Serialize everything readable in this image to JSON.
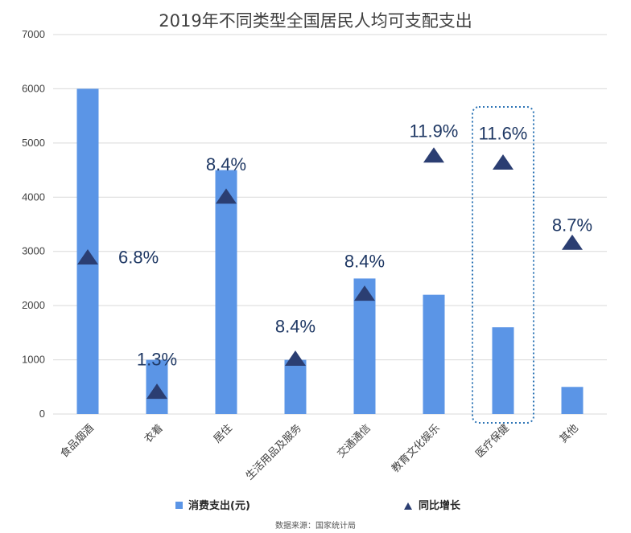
{
  "colors": {
    "bar": "#5b95e6",
    "marker": "#2b3e72",
    "label": "#1f3864",
    "grid": "#d9d9d9",
    "highlight": "#2e75b6"
  },
  "chart_data": {
    "type": "bar",
    "title": "2019年不同类型全国居民人均可支配支出",
    "categories": [
      "食品烟酒",
      "衣着",
      "居住",
      "生活用品及服务",
      "交通通信",
      "教育文化娱乐",
      "医疗保健",
      "其他"
    ],
    "series": [
      {
        "name": "消费支出(元)",
        "type": "bar",
        "values": [
          6000,
          1000,
          4500,
          1000,
          2500,
          2200,
          1600,
          500
        ]
      },
      {
        "name": "同比增长",
        "type": "marker",
        "values": [
          6.8,
          1.3,
          8.4,
          8.4,
          8.4,
          11.9,
          11.6,
          8.7
        ],
        "marker_y": [
          2900,
          420,
          4020,
          1030,
          2230,
          4780,
          4650,
          3170
        ]
      }
    ],
    "data_labels": [
      "6.8%",
      "1.3%",
      "8.4%",
      "8.4%",
      "8.4%",
      "11.9%",
      "11.6%",
      "8.7%"
    ],
    "ylim": [
      0,
      7000
    ],
    "yticks": [
      "0",
      "1000",
      "2000",
      "3000",
      "4000",
      "5000",
      "6000",
      "7000"
    ],
    "grid": true,
    "legend_position": "bottom",
    "highlighted_category": "医疗保健"
  },
  "legend": {
    "bar_label": "消费支出(元)",
    "marker_label": "同比增长"
  },
  "source": "数据来源：国家统计局"
}
